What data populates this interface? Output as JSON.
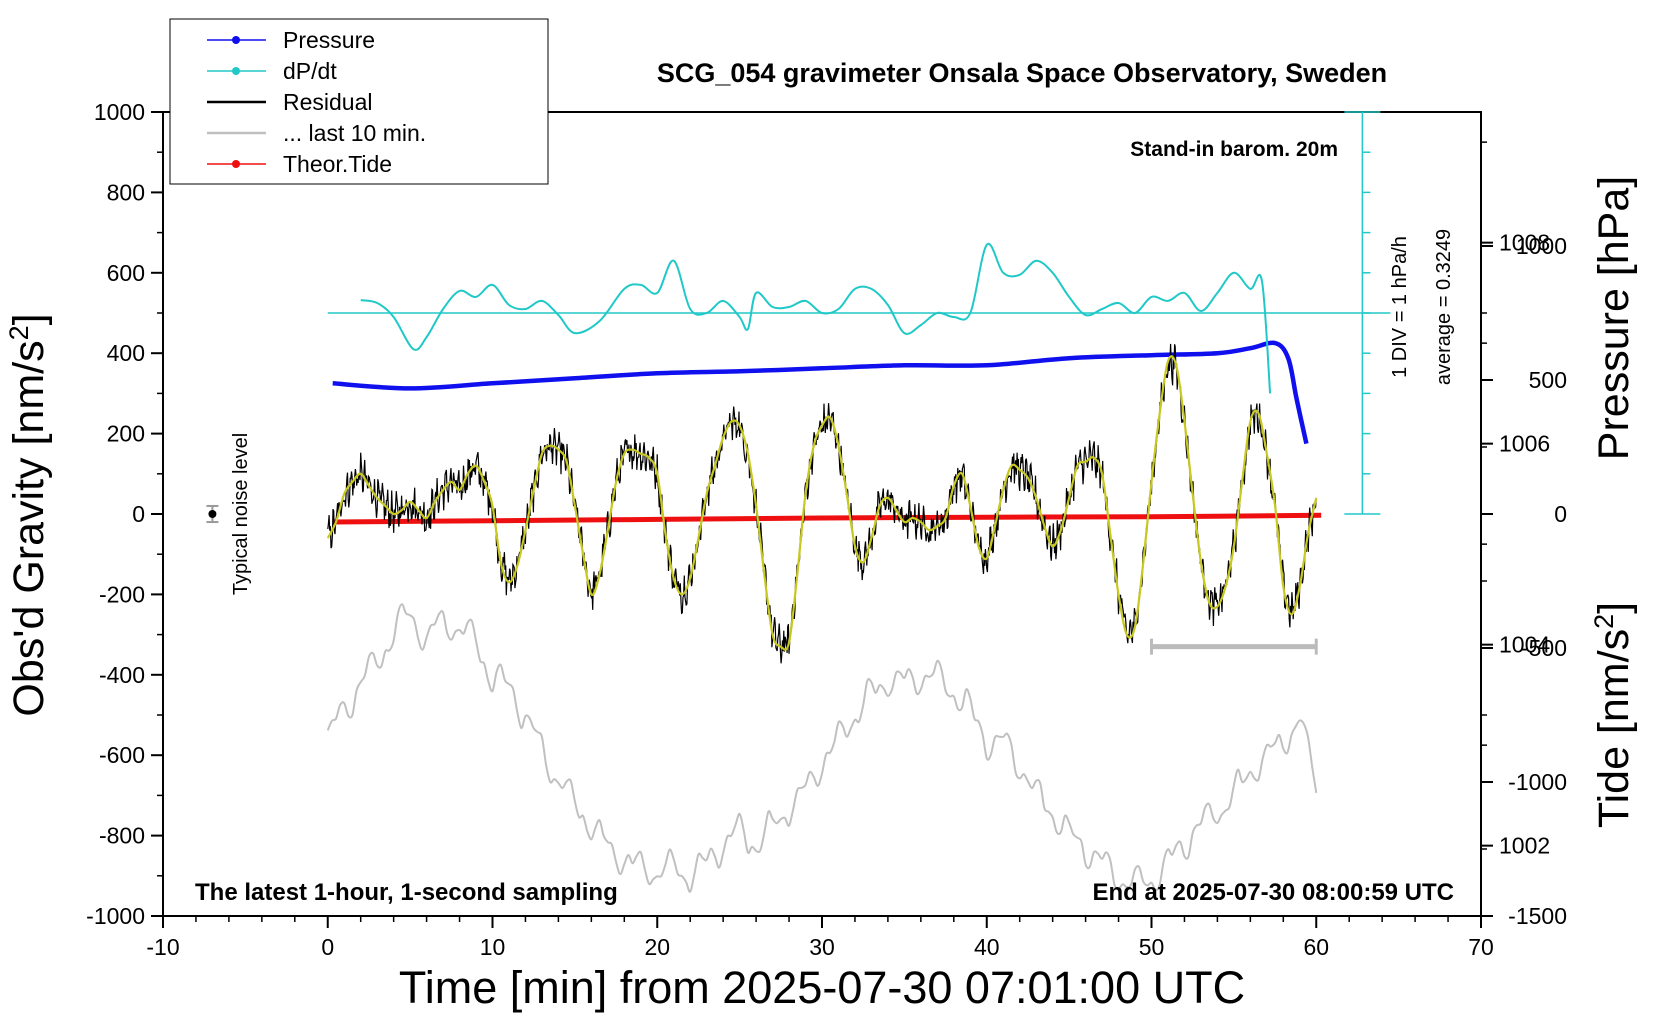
{
  "chart_data": {
    "type": "line",
    "title": "SCG_054 gravimeter Onsala Space Observatory, Sweden",
    "xlabel": "Time [min] from 2025-07-30 07:01:00 UTC",
    "ylabel_left": "Obs'd Gravity [nm/s",
    "ylabel_left_sup": "2",
    "ylabel_left_end": "]",
    "ylabel_right_pressure": "Pressure [hPa]",
    "ylabel_right_tide": "Tide [nm/s",
    "ylabel_right_tide_sup": "2",
    "ylabel_right_tide_end": "]",
    "xlim": [
      -10,
      70
    ],
    "ylim": [
      -1000,
      1000
    ],
    "pressure_lim": [
      1001.3,
      1009.3
    ],
    "tide_lim": [
      -1500,
      1500
    ],
    "x_ticks": [
      -10,
      0,
      10,
      20,
      30,
      40,
      50,
      60,
      70
    ],
    "y_ticks": [
      -1000,
      -800,
      -600,
      -400,
      -200,
      0,
      200,
      400,
      600,
      800,
      1000
    ],
    "pressure_ticks": [
      1002,
      1004,
      1006,
      1008
    ],
    "tide_ticks": [
      -1500,
      -1000,
      -500,
      0,
      500,
      1000
    ],
    "annotations": {
      "barometer": "Stand-in barom. 20m",
      "div": "1 DIV = 1 hPa/h",
      "average": "average = 0.3249",
      "noise": "Typical noise level",
      "latest": "The latest 1-hour, 1-second sampling",
      "end": "End at 2025-07-30 08:00:59 UTC"
    },
    "legend": [
      {
        "name": "Pressure",
        "color": "#1010ee",
        "marker": true
      },
      {
        "name": "dP/dt",
        "color": "#20c8c8",
        "marker": true
      },
      {
        "name": "Residual",
        "color": "#000000",
        "marker": false
      },
      {
        "name": "... last 10 min.",
        "color": "#c0c0c0",
        "marker": false
      },
      {
        "name": "Theor.Tide",
        "color": "#ee1010",
        "marker": true
      }
    ],
    "legend_position": "top-left",
    "colors": {
      "pressure": "#1010ee",
      "dpdt": "#20c8c8",
      "residual": "#000000",
      "residual_smooth": "#c8c820",
      "last10": "#c0c0c0",
      "tide": "#ee1010"
    },
    "series": {
      "pressure_hPa": {
        "x": [
          0.3,
          5,
          10,
          15,
          20,
          25,
          30,
          35,
          40,
          45,
          50,
          54,
          56,
          57.5,
          58.3,
          58.8,
          59.4
        ],
        "y": [
          1006.6,
          1006.55,
          1006.6,
          1006.65,
          1006.7,
          1006.72,
          1006.75,
          1006.78,
          1006.78,
          1006.85,
          1006.88,
          1006.9,
          1006.95,
          1007.0,
          1006.85,
          1006.45,
          1006.0
        ]
      },
      "dpdt_gravity_units": {
        "x": [
          2,
          3,
          4,
          5.2,
          6,
          7,
          8,
          9,
          10,
          11,
          12,
          13,
          14,
          15,
          16.5,
          18,
          19,
          20,
          21,
          22,
          23,
          24,
          25,
          25.5,
          26,
          27,
          28,
          29,
          30,
          31,
          32,
          33,
          34,
          35,
          36,
          37,
          38,
          39,
          40,
          41,
          42,
          43,
          44,
          45,
          46,
          47,
          48,
          49,
          50,
          51,
          52,
          53,
          54,
          55,
          56,
          56.7,
          57.2
        ],
        "y": [
          532,
          525,
          490,
          410,
          440,
          510,
          555,
          540,
          570,
          520,
          510,
          530,
          495,
          450,
          480,
          560,
          570,
          550,
          630,
          510,
          500,
          530,
          490,
          460,
          550,
          515,
          515,
          530,
          500,
          510,
          560,
          560,
          520,
          450,
          470,
          500,
          490,
          500,
          670,
          600,
          595,
          630,
          600,
          540,
          495,
          510,
          525,
          500,
          540,
          530,
          550,
          505,
          550,
          600,
          560,
          580,
          300
        ]
      },
      "residual_smooth": {
        "x": [
          0,
          0.5,
          1,
          1.5,
          2,
          2.5,
          3,
          3.5,
          4,
          4.5,
          5,
          5.5,
          6,
          6.5,
          7,
          7.5,
          8,
          8.5,
          9,
          9.5,
          10,
          10.5,
          11,
          11.5,
          12,
          12.5,
          13,
          13.5,
          14,
          14.5,
          15,
          15.5,
          16,
          16.5,
          17,
          17.5,
          18,
          18.5,
          19,
          19.5,
          20,
          20.5,
          21,
          21.5,
          22,
          22.5,
          23,
          23.5,
          24,
          24.5,
          25,
          25.5,
          26,
          26.5,
          27,
          27.5,
          28,
          28.5,
          29,
          29.5,
          30,
          30.5,
          31,
          31.5,
          32,
          32.5,
          33,
          33.5,
          34,
          34.5,
          35,
          35.5,
          36,
          36.5,
          37,
          37.5,
          38,
          38.5,
          39,
          39.5,
          40,
          40.5,
          41,
          41.5,
          42,
          42.5,
          43,
          43.5,
          44,
          44.5,
          45,
          45.5,
          46,
          46.5,
          47,
          47.5,
          48,
          48.5,
          49,
          49.5,
          50,
          50.5,
          51,
          51.5,
          52,
          52.5,
          53,
          53.5,
          54,
          54.5,
          55,
          55.5,
          56,
          56.5,
          57,
          57.5,
          58,
          58.5,
          59,
          59.5,
          60
        ],
        "y": [
          -60,
          -20,
          50,
          80,
          100,
          70,
          40,
          20,
          0,
          10,
          30,
          10,
          -10,
          30,
          60,
          80,
          60,
          100,
          120,
          80,
          20,
          -120,
          -170,
          -130,
          -40,
          60,
          150,
          170,
          160,
          130,
          20,
          -100,
          -200,
          -150,
          -40,
          80,
          150,
          160,
          150,
          140,
          100,
          -50,
          -160,
          -200,
          -160,
          -60,
          50,
          120,
          190,
          230,
          220,
          150,
          20,
          -150,
          -300,
          -330,
          -320,
          -150,
          50,
          170,
          220,
          240,
          170,
          50,
          -80,
          -120,
          -60,
          20,
          40,
          10,
          -20,
          -10,
          -20,
          -40,
          -30,
          -10,
          70,
          100,
          20,
          -80,
          -110,
          -30,
          60,
          120,
          110,
          90,
          40,
          -30,
          -80,
          -40,
          40,
          120,
          130,
          140,
          100,
          -50,
          -200,
          -300,
          -280,
          -120,
          80,
          250,
          380,
          370,
          230,
          50,
          -120,
          -220,
          -230,
          -180,
          -80,
          80,
          230,
          250,
          150,
          20,
          -180,
          -250,
          -180,
          -50,
          40
        ]
      },
      "last10_gravity_units": {
        "x": [
          0,
          1,
          2,
          3,
          4,
          5,
          6,
          7,
          8,
          9,
          10,
          11,
          12,
          13,
          14,
          15,
          16,
          17,
          18,
          19,
          20,
          21,
          22,
          23,
          24,
          25,
          26,
          27,
          28,
          29,
          30,
          31,
          32,
          33,
          34,
          35,
          36,
          37,
          38,
          39,
          40,
          41,
          42,
          43,
          44,
          45,
          46,
          47,
          48,
          49,
          50,
          51,
          52,
          53,
          54,
          55,
          56,
          57,
          58,
          59,
          60
        ],
        "y": [
          -555,
          -490,
          -420,
          -370,
          -290,
          -250,
          -310,
          -270,
          -280,
          -320,
          -410,
          -430,
          -500,
          -590,
          -660,
          -720,
          -770,
          -830,
          -860,
          -880,
          -890,
          -880,
          -900,
          -870,
          -820,
          -790,
          -820,
          -780,
          -730,
          -690,
          -620,
          -560,
          -500,
          -450,
          -410,
          -420,
          -400,
          -410,
          -440,
          -490,
          -560,
          -570,
          -620,
          -700,
          -740,
          -800,
          -830,
          -870,
          -900,
          -920,
          -910,
          -870,
          -820,
          -770,
          -740,
          -700,
          -640,
          -610,
          -560,
          -520,
          -660
        ]
      },
      "tide_nm_s2": {
        "x": [
          0.3,
          10,
          20,
          30,
          40,
          50,
          60.3
        ],
        "y": [
          -30,
          -25,
          -20,
          -15,
          -12,
          -10,
          -5
        ]
      }
    }
  }
}
